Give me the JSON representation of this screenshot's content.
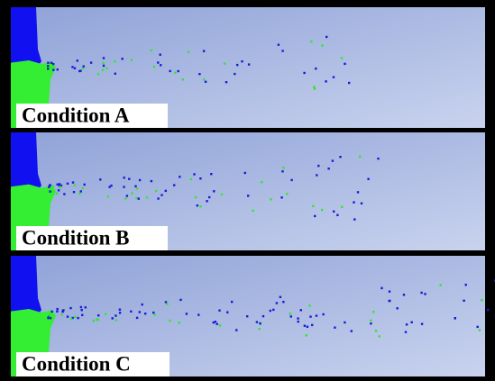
{
  "panels": [
    {
      "label": "Condition A"
    },
    {
      "label": "Condition B"
    },
    {
      "label": "Condition C"
    }
  ]
}
